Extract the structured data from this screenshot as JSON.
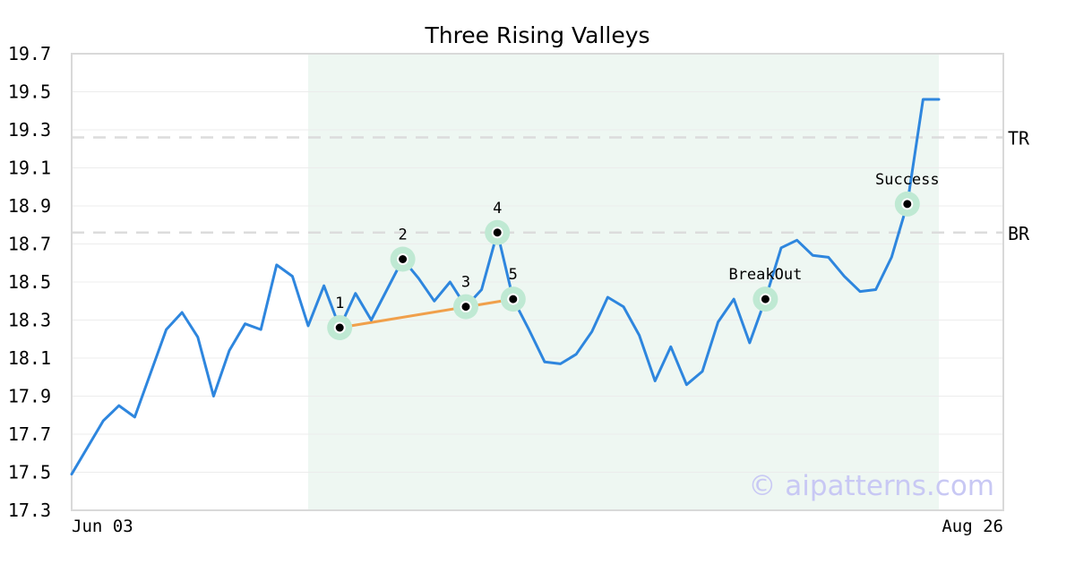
{
  "chart_data": {
    "type": "line",
    "title": "Three Rising Valleys",
    "ylim": [
      17.3,
      19.7
    ],
    "y_ticks": [
      "17.3",
      "17.5",
      "17.7",
      "17.9",
      "18.1",
      "18.3",
      "18.5",
      "18.7",
      "18.9",
      "19.1",
      "19.3",
      "19.5",
      "19.7"
    ],
    "x_labels": [
      "Jun 03",
      "Aug 26"
    ],
    "grid": true,
    "series": [
      {
        "color": "#2e86de",
        "values": [
          17.49,
          17.63,
          17.77,
          17.85,
          17.79,
          18.02,
          18.25,
          18.34,
          18.21,
          17.9,
          18.14,
          18.28,
          18.25,
          18.59,
          18.53,
          18.27,
          18.48,
          18.26,
          18.44,
          18.3,
          18.46,
          18.62,
          18.52,
          18.4,
          18.5,
          18.37,
          18.46,
          18.76,
          18.41,
          18.25,
          18.08,
          18.07,
          18.12,
          18.24,
          18.42,
          18.37,
          18.22,
          17.98,
          18.16,
          17.96,
          18.03,
          18.29,
          18.41,
          18.18,
          18.41,
          18.68,
          18.72,
          18.64,
          18.63,
          18.53,
          18.45,
          18.46,
          18.63,
          18.91,
          19.46,
          19.46
        ]
      }
    ],
    "highlight_range": {
      "start_index": 15,
      "end_index": 55,
      "color": "#eef7f2"
    },
    "levels": [
      {
        "label": "TR",
        "value": 19.26
      },
      {
        "label": "BR",
        "value": 18.76
      }
    ],
    "points": [
      {
        "label": "1",
        "index": 17,
        "value": 18.26
      },
      {
        "label": "2",
        "index": 21,
        "value": 18.62
      },
      {
        "label": "3",
        "index": 25,
        "value": 18.37
      },
      {
        "label": "4",
        "index": 27,
        "value": 18.76
      },
      {
        "label": "5",
        "index": 28,
        "value": 18.41
      },
      {
        "label": "BreakOut",
        "index": 44,
        "value": 18.41
      },
      {
        "label": "Success",
        "index": 53,
        "value": 18.91
      }
    ],
    "trendline": {
      "from_point": 0,
      "to_point": 4,
      "color": "#f0a04b"
    },
    "marker_halo_color": "#bfe9d3"
  },
  "watermark": "© aipatterns.com"
}
